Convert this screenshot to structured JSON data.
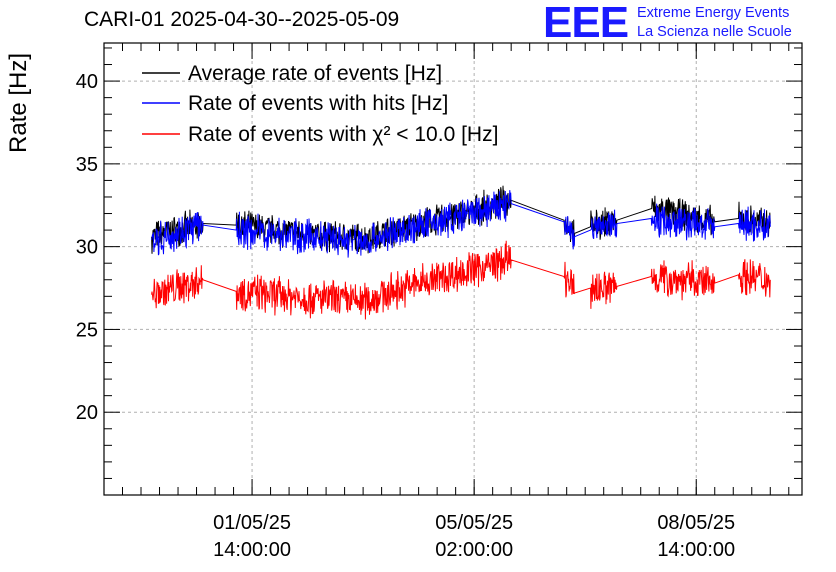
{
  "header": {
    "title": "CARI-01 2025-04-30--2025-05-09",
    "logo_text": "EEE",
    "logo_line1": "Extreme Energy Events",
    "logo_line2": "La Scienza nelle Scuole"
  },
  "chart_data": {
    "type": "line",
    "title": "CARI-01 2025-04-30--2025-05-09",
    "ylabel": "Rate [Hz]",
    "xlabel": "",
    "ylim": [
      15,
      42.3
    ],
    "xlim": [
      "2025-04-29 06:00",
      "2025-05-10 06:00"
    ],
    "grid": true,
    "legend_position": "top-left",
    "x_ticks": [
      {
        "date": "01/05/25",
        "time": "14:00:00",
        "x": "2025-05-01 14:00"
      },
      {
        "date": "05/05/25",
        "time": "02:00:00",
        "x": "2025-05-05 02:00"
      },
      {
        "date": "08/05/25",
        "time": "14:00:00",
        "x": "2025-05-08 14:00"
      }
    ],
    "y_ticks": [
      20,
      25,
      30,
      35,
      40
    ],
    "segments": [
      {
        "start": "2025-04-30 00:00",
        "end": "2025-04-30 19:30"
      },
      {
        "start": "2025-05-01 08:00",
        "end": "2025-05-04 05:00"
      },
      {
        "start": "2025-05-04 05:00",
        "end": "2025-05-05 16:00"
      },
      {
        "start": "2025-05-06 12:00",
        "end": "2025-05-06 16:00"
      },
      {
        "start": "2025-05-06 22:00",
        "end": "2025-05-07 08:00"
      },
      {
        "start": "2025-05-07 21:00",
        "end": "2025-05-08 21:00"
      },
      {
        "start": "2025-05-09 06:00",
        "end": "2025-05-09 18:00"
      }
    ],
    "series": [
      {
        "name": "Average rate of events [Hz]",
        "color": "#000000",
        "points": [
          [
            "2025-04-30 00:00",
            30.6
          ],
          [
            "2025-04-30 19:30",
            31.4
          ],
          [
            "2025-05-01 08:00",
            31.3
          ],
          [
            "2025-05-02 12:00",
            30.7
          ],
          [
            "2025-05-03 08:00",
            30.5
          ],
          [
            "2025-05-04 05:00",
            31.3
          ],
          [
            "2025-05-05 16:00",
            32.8
          ],
          [
            "2025-05-06 12:00",
            31.6
          ],
          [
            "2025-05-06 16:00",
            30.8
          ],
          [
            "2025-05-06 22:00",
            31.2
          ],
          [
            "2025-05-07 08:00",
            31.6
          ],
          [
            "2025-05-07 21:00",
            32.3
          ],
          [
            "2025-05-08 21:00",
            31.5
          ],
          [
            "2025-05-09 06:00",
            31.7
          ],
          [
            "2025-05-09 18:00",
            31.4
          ]
        ]
      },
      {
        "name": "Rate of events with hits [Hz]",
        "color": "#0000ff",
        "points": [
          [
            "2025-04-30 00:00",
            30.4
          ],
          [
            "2025-04-30 19:30",
            31.3
          ],
          [
            "2025-05-01 08:00",
            31.0
          ],
          [
            "2025-05-02 12:00",
            30.6
          ],
          [
            "2025-05-03 08:00",
            30.3
          ],
          [
            "2025-05-04 05:00",
            31.2
          ],
          [
            "2025-05-05 16:00",
            32.6
          ],
          [
            "2025-05-06 12:00",
            31.5
          ],
          [
            "2025-05-06 16:00",
            30.6
          ],
          [
            "2025-05-06 22:00",
            31.0
          ],
          [
            "2025-05-07 08:00",
            31.4
          ],
          [
            "2025-05-07 21:00",
            31.7
          ],
          [
            "2025-05-08 21:00",
            31.2
          ],
          [
            "2025-05-09 06:00",
            31.4
          ],
          [
            "2025-05-09 18:00",
            31.2
          ]
        ]
      },
      {
        "name": "Rate of events with χ² < 10.0 [Hz]",
        "color": "#ff0000",
        "points": [
          [
            "2025-04-30 00:00",
            27.1
          ],
          [
            "2025-04-30 19:30",
            28.0
          ],
          [
            "2025-05-01 08:00",
            27.3
          ],
          [
            "2025-05-02 12:00",
            26.9
          ],
          [
            "2025-05-03 08:00",
            26.7
          ],
          [
            "2025-05-04 05:00",
            27.8
          ],
          [
            "2025-05-05 16:00",
            29.2
          ],
          [
            "2025-05-06 12:00",
            28.2
          ],
          [
            "2025-05-06 16:00",
            27.2
          ],
          [
            "2025-05-06 22:00",
            27.5
          ],
          [
            "2025-05-07 08:00",
            27.6
          ],
          [
            "2025-05-07 21:00",
            28.2
          ],
          [
            "2025-05-08 21:00",
            27.8
          ],
          [
            "2025-05-09 06:00",
            28.3
          ],
          [
            "2025-05-09 18:00",
            28.0
          ]
        ]
      }
    ]
  }
}
